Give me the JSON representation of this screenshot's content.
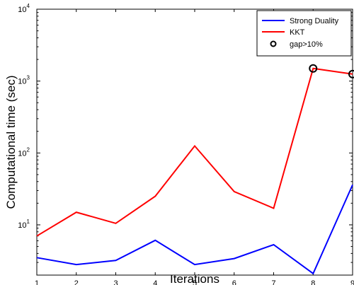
{
  "chart_data": {
    "type": "line",
    "xlabel": "Iterations",
    "ylabel": "Computational time (sec)",
    "x": [
      1,
      2,
      3,
      4,
      5,
      6,
      7,
      8,
      9
    ],
    "xlim": [
      1,
      9
    ],
    "ylim": [
      2,
      10000
    ],
    "yscale": "log",
    "xticks": [
      "1",
      "2",
      "3",
      "4",
      "5",
      "6",
      "7",
      "8",
      "9"
    ],
    "yticks": [
      {
        "value": 10,
        "base": "10",
        "exp": "1"
      },
      {
        "value": 100,
        "base": "10",
        "exp": "2"
      },
      {
        "value": 1000,
        "base": "10",
        "exp": "3"
      },
      {
        "value": 10000,
        "base": "10",
        "exp": "4"
      }
    ],
    "series": [
      {
        "name": "Strong Duality",
        "color": "#0000ff",
        "values": [
          3.5,
          2.8,
          3.2,
          6.1,
          2.8,
          3.4,
          5.3,
          2.1,
          36
        ]
      },
      {
        "name": "KKT",
        "color": "#ff0000",
        "values": [
          7.0,
          15,
          10.5,
          25,
          125,
          29,
          17,
          1500,
          1250
        ]
      }
    ],
    "markers": {
      "name": "gap>10%",
      "color": "#000000",
      "points": [
        {
          "x": 8,
          "y": 1500
        },
        {
          "x": 9,
          "y": 1250
        }
      ]
    },
    "grid": false,
    "legend": "top-right"
  }
}
